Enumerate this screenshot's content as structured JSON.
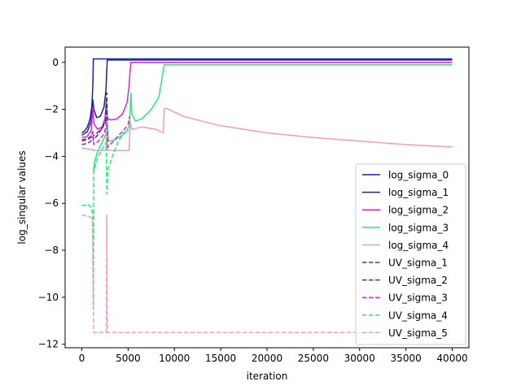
{
  "chart_data": {
    "type": "line",
    "xlabel": "iteration",
    "ylabel": "log_singular values",
    "xlim": [
      -1800,
      41800
    ],
    "ylim": [
      -12.15,
      0.65
    ],
    "xticks": [
      0,
      5000,
      10000,
      15000,
      20000,
      25000,
      30000,
      35000,
      40000
    ],
    "yticks": [
      0,
      -2,
      -4,
      -6,
      -8,
      -10,
      -12
    ],
    "xtick_labels": [
      "0",
      "5000",
      "10000",
      "15000",
      "20000",
      "25000",
      "30000",
      "35000",
      "40000"
    ],
    "ytick_labels": [
      "0",
      "−2",
      "−4",
      "−6",
      "−8",
      "−10",
      "−12"
    ],
    "legend_position": "lower-right",
    "grid": false,
    "series": [
      {
        "name": "log_sigma_0",
        "color": "#1f1fb4",
        "dash": "solid",
        "x": [
          0,
          300,
          600,
          900,
          1100,
          1200,
          1250,
          1300,
          40000
        ],
        "y": [
          -3.0,
          -2.92,
          -2.75,
          -2.4,
          -1.8,
          -0.9,
          0.15,
          0.15,
          0.15
        ]
      },
      {
        "name": "log_sigma_1",
        "color": "#1e2a6e",
        "dash": "solid",
        "x": [
          0,
          600,
          1000,
          1200,
          1300,
          1600,
          2000,
          2400,
          2600,
          2700,
          2750,
          40000
        ],
        "y": [
          -3.1,
          -2.95,
          -2.5,
          -1.6,
          -2.0,
          -2.35,
          -2.3,
          -1.9,
          -1.2,
          -0.3,
          0.1,
          0.1
        ]
      },
      {
        "name": "log_sigma_2",
        "color": "#dd22dd",
        "dash": "solid",
        "x": [
          0,
          600,
          1000,
          1200,
          1300,
          1700,
          2200,
          2500,
          2650,
          2700,
          2800,
          3200,
          3800,
          4400,
          4900,
          5100,
          5250,
          5300,
          40000
        ],
        "y": [
          -3.2,
          -3.15,
          -2.9,
          -1.9,
          -2.6,
          -2.85,
          -2.75,
          -2.4,
          -1.6,
          -2.2,
          -2.4,
          -2.45,
          -2.4,
          -2.2,
          -1.7,
          -1.0,
          -0.2,
          0.0,
          0.0
        ]
      },
      {
        "name": "log_sigma_3",
        "color": "#22ee77",
        "dash": "solid",
        "x": [
          1250,
          1400,
          1700,
          2200,
          2600,
          2750,
          2900,
          3500,
          4200,
          4800,
          5150,
          5300,
          5400,
          5800,
          6500,
          7500,
          8300,
          8700,
          8850,
          8900,
          40000
        ],
        "y": [
          -4.6,
          -4.2,
          -3.8,
          -3.4,
          -3.05,
          -2.6,
          -3.35,
          -3.3,
          -3.15,
          -2.95,
          -2.7,
          -1.3,
          -2.2,
          -2.5,
          -2.4,
          -2.0,
          -1.5,
          -0.6,
          -0.2,
          -0.1,
          -0.1
        ]
      },
      {
        "name": "log_sigma_4",
        "color": "#f29bbd",
        "dash": "solid",
        "x": [
          0,
          1200,
          1250,
          2600,
          2700,
          2800,
          5100,
          5250,
          5400,
          6500,
          8000,
          8800,
          8900,
          9100,
          11000,
          15000,
          20000,
          25000,
          30000,
          35000,
          40000
        ],
        "y": [
          -3.65,
          -3.72,
          -3.75,
          -3.75,
          -2.7,
          -3.75,
          -3.75,
          -2.55,
          -2.85,
          -2.75,
          -2.85,
          -3.0,
          -2.0,
          -1.95,
          -2.3,
          -2.7,
          -3.0,
          -3.2,
          -3.35,
          -3.5,
          -3.6
        ]
      },
      {
        "name": "UV_sigma_1",
        "color": "#3a3acc",
        "dash": "dashed",
        "x": [
          0,
          600,
          1000,
          1200,
          1300,
          1800,
          2300,
          2550,
          2650
        ],
        "y": [
          -3.5,
          -3.45,
          -3.35,
          -3.2,
          -3.1,
          -2.95,
          -2.75,
          -2.55,
          -2.4
        ]
      },
      {
        "name": "UV_sigma_2",
        "color": "#2a3a7a",
        "dash": "dashed",
        "x": [
          0,
          600,
          1000,
          1150,
          1250,
          1700,
          2200,
          2600,
          2700,
          2750
        ],
        "y": [
          -3.3,
          -3.25,
          -3.15,
          -2.95,
          -3.3,
          -3.1,
          -2.8,
          -2.4,
          -1.3,
          -2.5
        ]
      },
      {
        "name": "UV_sigma_3",
        "color": "#dd22dd",
        "dash": "dashed",
        "x": [
          0,
          600,
          1000,
          1200,
          1300,
          1800,
          2400,
          2700,
          2800,
          3300,
          4000,
          4600,
          5000,
          5150
        ],
        "y": [
          -3.35,
          -3.3,
          -3.2,
          -2.95,
          -3.5,
          -3.35,
          -3.05,
          -2.55,
          -3.6,
          -3.4,
          -3.1,
          -2.85,
          -2.65,
          -2.3
        ]
      },
      {
        "name": "UV_sigma_4",
        "color": "#22ee77",
        "dash": "dashed",
        "x": [
          0,
          700,
          1000,
          1200,
          1250,
          1300,
          1700,
          2200,
          2650,
          2700,
          2750,
          2800,
          3300,
          3900,
          4500,
          5100
        ],
        "y": [
          -6.1,
          -6.05,
          -6.15,
          -6.5,
          -10.5,
          -4.6,
          -4.05,
          -3.7,
          -3.4,
          -5.6,
          -5.1,
          -4.6,
          -4.0,
          -3.4,
          -3.0,
          -2.9
        ]
      },
      {
        "name": "UV_sigma_5",
        "color": "#f29bbd",
        "dash": "dashed",
        "x": [
          0,
          600,
          1000,
          1150,
          1250,
          1300,
          1400,
          2650,
          2700,
          2750,
          40000
        ],
        "y": [
          -6.5,
          -6.55,
          -6.6,
          -6.8,
          -10.5,
          -11.5,
          -11.5,
          -11.5,
          -6.5,
          -11.5,
          -11.5
        ]
      }
    ]
  }
}
